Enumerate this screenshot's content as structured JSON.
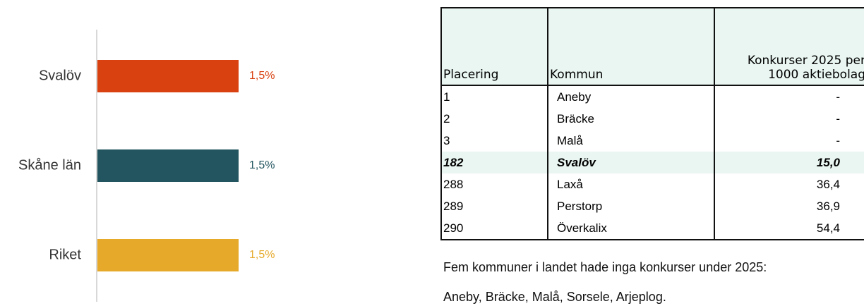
{
  "chart_data": {
    "type": "hbar",
    "categories": [
      "Svalöv",
      "Skåne län",
      "Riket"
    ],
    "values": [
      1.5,
      1.5,
      1.5
    ],
    "value_labels": [
      "1,5%",
      "1,5%",
      "1,5%"
    ],
    "colors": [
      "#d94110",
      "#22555f",
      "#e6a92a"
    ]
  },
  "table": {
    "headers": [
      "Placering",
      "Kommun",
      "Konkurser 2025 per 1000 aktiebolag"
    ],
    "rows": [
      [
        "1",
        "Aneby",
        "-"
      ],
      [
        "2",
        "Bräcke",
        "-"
      ],
      [
        "3",
        "Malå",
        "-"
      ],
      [
        "182",
        "Svalöv",
        "15,0"
      ],
      [
        "288",
        "Laxå",
        "36,4"
      ],
      [
        "289",
        "Perstorp",
        "36,9"
      ],
      [
        "290",
        "Överkalix",
        "54,4"
      ]
    ],
    "highlight_row": 3
  },
  "notes": [
    "Fem kommuner i landet hade inga konkurser under 2025:",
    "Aneby, Bräcke, Malå, Sorsele, Arjeplog."
  ]
}
